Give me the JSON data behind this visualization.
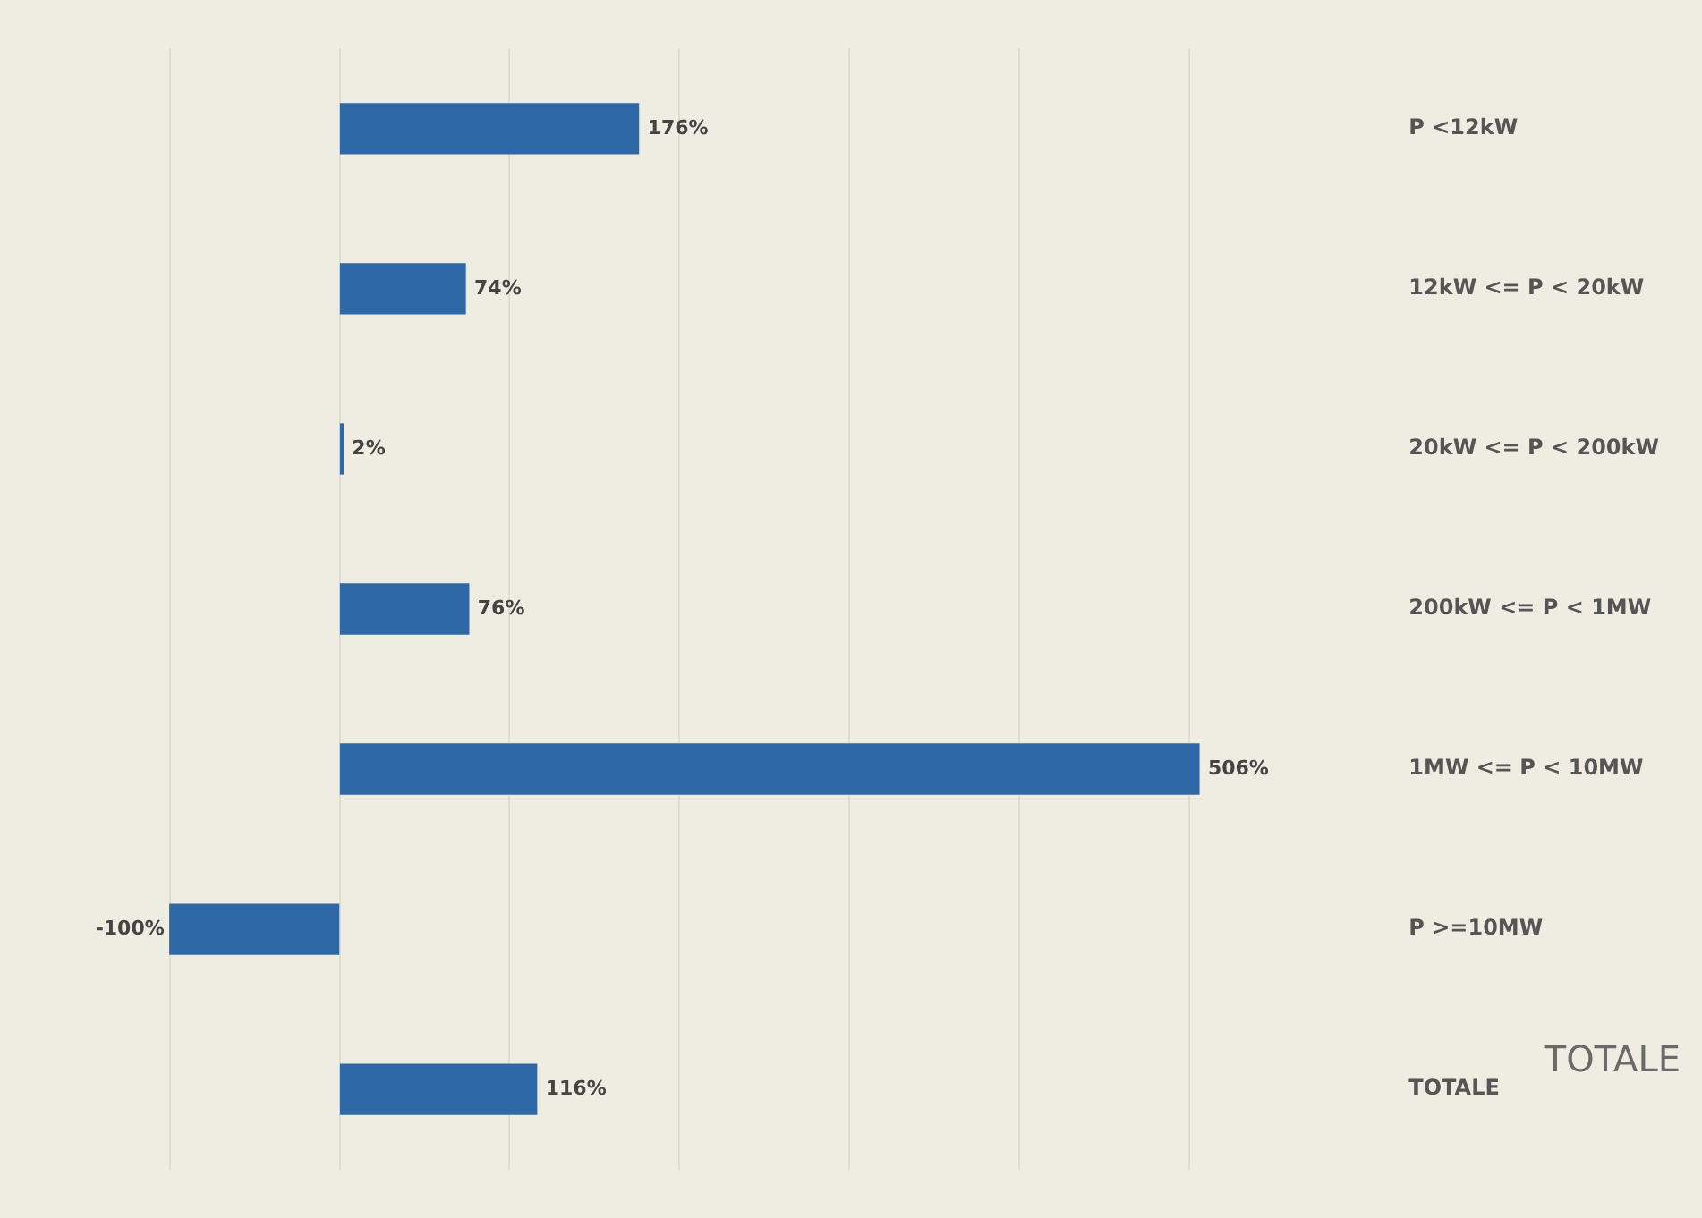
{
  "chart_data": {
    "type": "bar",
    "orientation": "horizontal",
    "categories": [
      "P <12kW",
      "12kW <= P < 20kW",
      "20kW <= P < 200kW",
      "200kW <= P < 1MW",
      "1MW <= P < 10MW",
      "P >=10MW",
      "TOTALE"
    ],
    "values": [
      176,
      74,
      2,
      76,
      506,
      -100,
      116
    ],
    "value_labels": [
      "176%",
      "74%",
      "2%",
      "76%",
      "506%",
      "-100%",
      "116%"
    ],
    "color": "#2f68a6",
    "xticks": [
      {
        "value": -100,
        "label": null
      },
      {
        "value": 0,
        "label": null
      },
      {
        "value": 100,
        "label": null
      },
      {
        "value": 200,
        "label": null
      },
      {
        "value": 300,
        "label": null
      },
      {
        "value": 400,
        "label": null
      },
      {
        "value": 500,
        "label": null
      }
    ],
    "grid": "x",
    "tick_labels": "y",
    "legend": false,
    "annotations": [
      "TOTALE"
    ]
  }
}
